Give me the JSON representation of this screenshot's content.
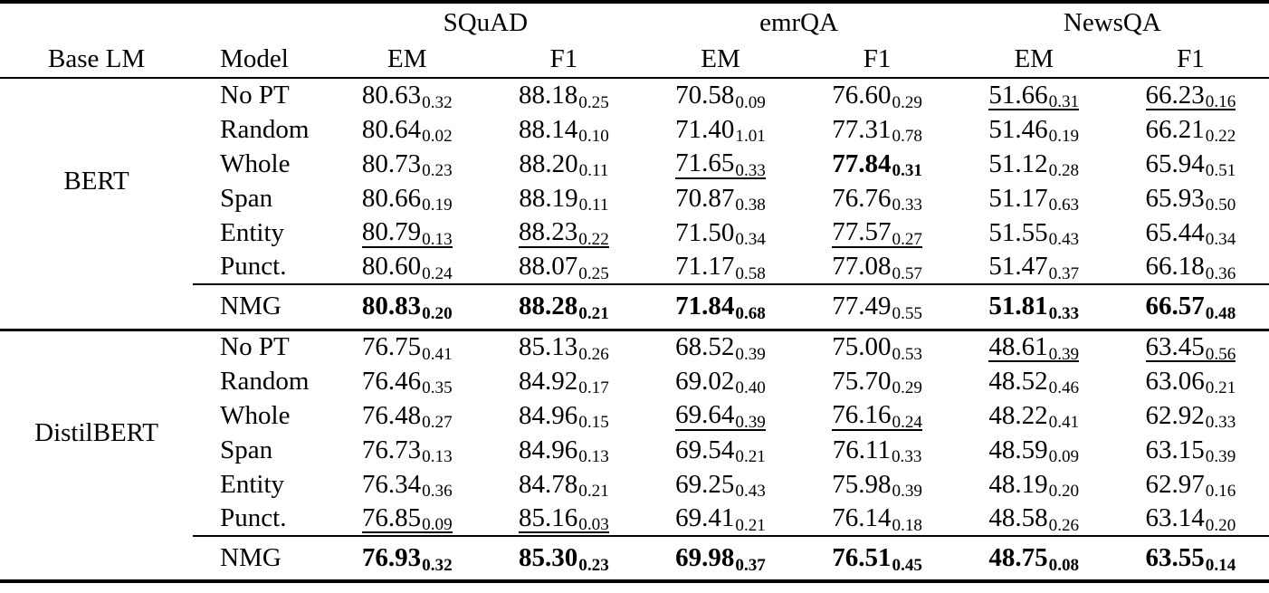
{
  "table": {
    "header": {
      "base_lm": "Base LM",
      "model": "Model",
      "groups": [
        {
          "label": "SQuAD",
          "cols": [
            "EM",
            "F1"
          ]
        },
        {
          "label": "emrQA",
          "cols": [
            "EM",
            "F1"
          ]
        },
        {
          "label": "NewsQA",
          "cols": [
            "EM",
            "F1"
          ]
        }
      ]
    },
    "blocks": [
      {
        "base_lm": "BERT",
        "rows": [
          {
            "model": "No PT",
            "cells": [
              {
                "v": "80.63",
                "s": "0.32"
              },
              {
                "v": "88.18",
                "s": "0.25"
              },
              {
                "v": "70.58",
                "s": "0.09"
              },
              {
                "v": "76.60",
                "s": "0.29"
              },
              {
                "v": "51.66",
                "s": "0.31",
                "underline": true
              },
              {
                "v": "66.23",
                "s": "0.16",
                "underline": true
              }
            ]
          },
          {
            "model": "Random",
            "cells": [
              {
                "v": "80.64",
                "s": "0.02"
              },
              {
                "v": "88.14",
                "s": "0.10"
              },
              {
                "v": "71.40",
                "s": "1.01"
              },
              {
                "v": "77.31",
                "s": "0.78"
              },
              {
                "v": "51.46",
                "s": "0.19"
              },
              {
                "v": "66.21",
                "s": "0.22"
              }
            ]
          },
          {
            "model": "Whole",
            "cells": [
              {
                "v": "80.73",
                "s": "0.23"
              },
              {
                "v": "88.20",
                "s": "0.11"
              },
              {
                "v": "71.65",
                "s": "0.33",
                "underline": true
              },
              {
                "v": "77.84",
                "s": "0.31",
                "bold": true
              },
              {
                "v": "51.12",
                "s": "0.28"
              },
              {
                "v": "65.94",
                "s": "0.51"
              }
            ]
          },
          {
            "model": "Span",
            "cells": [
              {
                "v": "80.66",
                "s": "0.19"
              },
              {
                "v": "88.19",
                "s": "0.11"
              },
              {
                "v": "70.87",
                "s": "0.38"
              },
              {
                "v": "76.76",
                "s": "0.33"
              },
              {
                "v": "51.17",
                "s": "0.63"
              },
              {
                "v": "65.93",
                "s": "0.50"
              }
            ]
          },
          {
            "model": "Entity",
            "cells": [
              {
                "v": "80.79",
                "s": "0.13",
                "underline": true
              },
              {
                "v": "88.23",
                "s": "0.22",
                "underline": true
              },
              {
                "v": "71.50",
                "s": "0.34"
              },
              {
                "v": "77.57",
                "s": "0.27",
                "underline": true
              },
              {
                "v": "51.55",
                "s": "0.43"
              },
              {
                "v": "65.44",
                "s": "0.34"
              }
            ]
          },
          {
            "model": "Punct.",
            "cells": [
              {
                "v": "80.60",
                "s": "0.24"
              },
              {
                "v": "88.07",
                "s": "0.25"
              },
              {
                "v": "71.17",
                "s": "0.58"
              },
              {
                "v": "77.08",
                "s": "0.57"
              },
              {
                "v": "51.47",
                "s": "0.37"
              },
              {
                "v": "66.18",
                "s": "0.36"
              }
            ]
          }
        ],
        "nmg_row": {
          "model": "NMG",
          "cells": [
            {
              "v": "80.83",
              "s": "0.20",
              "bold": true
            },
            {
              "v": "88.28",
              "s": "0.21",
              "bold": true
            },
            {
              "v": "71.84",
              "s": "0.68",
              "bold": true
            },
            {
              "v": "77.49",
              "s": "0.55"
            },
            {
              "v": "51.81",
              "s": "0.33",
              "bold": true
            },
            {
              "v": "66.57",
              "s": "0.48",
              "bold": true
            }
          ]
        }
      },
      {
        "base_lm": "DistilBERT",
        "rows": [
          {
            "model": "No PT",
            "cells": [
              {
                "v": "76.75",
                "s": "0.41"
              },
              {
                "v": "85.13",
                "s": "0.26"
              },
              {
                "v": "68.52",
                "s": "0.39"
              },
              {
                "v": "75.00",
                "s": "0.53"
              },
              {
                "v": "48.61",
                "s": "0.39",
                "underline": true
              },
              {
                "v": "63.45",
                "s": "0.56",
                "underline": true
              }
            ]
          },
          {
            "model": "Random",
            "cells": [
              {
                "v": "76.46",
                "s": "0.35"
              },
              {
                "v": "84.92",
                "s": "0.17"
              },
              {
                "v": "69.02",
                "s": "0.40"
              },
              {
                "v": "75.70",
                "s": "0.29"
              },
              {
                "v": "48.52",
                "s": "0.46"
              },
              {
                "v": "63.06",
                "s": "0.21"
              }
            ]
          },
          {
            "model": "Whole",
            "cells": [
              {
                "v": "76.48",
                "s": "0.27"
              },
              {
                "v": "84.96",
                "s": "0.15"
              },
              {
                "v": "69.64",
                "s": "0.39",
                "underline": true
              },
              {
                "v": "76.16",
                "s": "0.24",
                "underline": true
              },
              {
                "v": "48.22",
                "s": "0.41"
              },
              {
                "v": "62.92",
                "s": "0.33"
              }
            ]
          },
          {
            "model": "Span",
            "cells": [
              {
                "v": "76.73",
                "s": "0.13"
              },
              {
                "v": "84.96",
                "s": "0.13"
              },
              {
                "v": "69.54",
                "s": "0.21"
              },
              {
                "v": "76.11",
                "s": "0.33"
              },
              {
                "v": "48.59",
                "s": "0.09"
              },
              {
                "v": "63.15",
                "s": "0.39"
              }
            ]
          },
          {
            "model": "Entity",
            "cells": [
              {
                "v": "76.34",
                "s": "0.36"
              },
              {
                "v": "84.78",
                "s": "0.21"
              },
              {
                "v": "69.25",
                "s": "0.43"
              },
              {
                "v": "75.98",
                "s": "0.39"
              },
              {
                "v": "48.19",
                "s": "0.20"
              },
              {
                "v": "62.97",
                "s": "0.16"
              }
            ]
          },
          {
            "model": "Punct.",
            "cells": [
              {
                "v": "76.85",
                "s": "0.09",
                "underline": true
              },
              {
                "v": "85.16",
                "s": "0.03",
                "underline": true
              },
              {
                "v": "69.41",
                "s": "0.21"
              },
              {
                "v": "76.14",
                "s": "0.18"
              },
              {
                "v": "48.58",
                "s": "0.26"
              },
              {
                "v": "63.14",
                "s": "0.20"
              }
            ]
          }
        ],
        "nmg_row": {
          "model": "NMG",
          "cells": [
            {
              "v": "76.93",
              "s": "0.32",
              "bold": true
            },
            {
              "v": "85.30",
              "s": "0.23",
              "bold": true
            },
            {
              "v": "69.98",
              "s": "0.37",
              "bold": true
            },
            {
              "v": "76.51",
              "s": "0.45",
              "bold": true
            },
            {
              "v": "48.75",
              "s": "0.08",
              "bold": true
            },
            {
              "v": "63.55",
              "s": "0.14",
              "bold": true
            }
          ]
        }
      }
    ]
  }
}
